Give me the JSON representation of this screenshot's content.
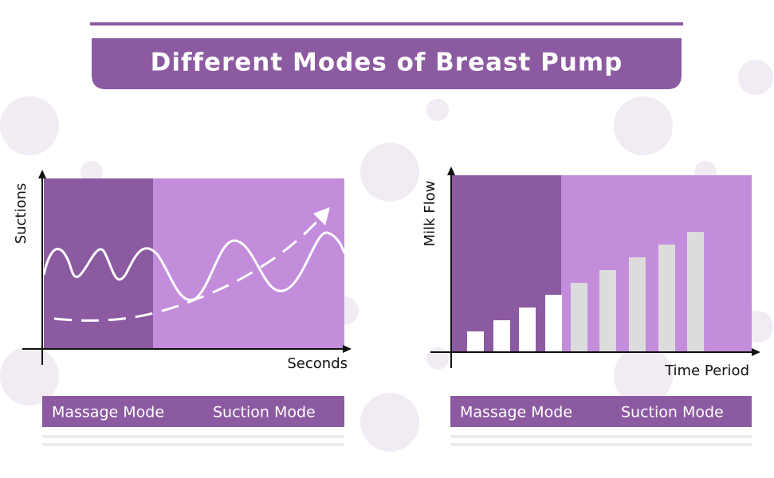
{
  "header": {
    "title": "Different Modes of Breast Pump"
  },
  "panels": [
    {
      "y_label": "Suctions",
      "x_label": "Seconds",
      "modes": [
        "Massage Mode",
        "Suction Mode"
      ]
    },
    {
      "y_label": "Milk Flow",
      "x_label": "Time Period",
      "modes": [
        "Massage Mode",
        "Suction Mode"
      ]
    }
  ]
}
